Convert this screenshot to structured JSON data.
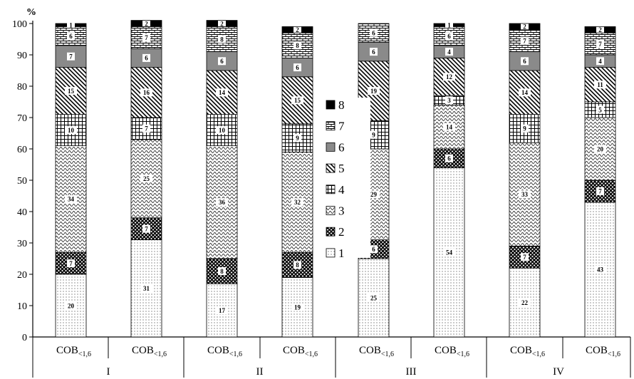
{
  "chart_data": {
    "type": "bar",
    "stacked": true,
    "ylabel": "%",
    "ylim": [
      0,
      100
    ],
    "yticks": [
      0,
      10,
      20,
      30,
      40,
      50,
      60,
      70,
      80,
      90,
      100
    ],
    "grid": false,
    "legend_position": "center",
    "categories": [
      {
        "label": "COB",
        "sub": "<1,6",
        "group": "I"
      },
      {
        "label": "COB",
        "sub": "<1,6",
        "group": "I"
      },
      {
        "label": "COB",
        "sub": "<1,6",
        "group": "II"
      },
      {
        "label": "COB",
        "sub": "<1,6",
        "group": "II"
      },
      {
        "label": "COB",
        "sub": "<1,6",
        "group": "III"
      },
      {
        "label": "COB",
        "sub": "<1,6",
        "group": "III"
      },
      {
        "label": "COB",
        "sub": "<1,6",
        "group": "IV"
      },
      {
        "label": "COB",
        "sub": "<1,6",
        "group": "IV"
      }
    ],
    "groups": [
      "I",
      "II",
      "III",
      "IV"
    ],
    "series": [
      {
        "name": "1",
        "values": [
          20,
          31,
          17,
          19,
          25,
          54,
          22,
          43
        ],
        "labels": [
          "20",
          "31",
          "17",
          "19",
          "25",
          "54",
          "22",
          "43"
        ]
      },
      {
        "name": "2",
        "values": [
          7,
          7,
          8,
          8,
          6,
          6,
          7,
          7
        ],
        "labels": [
          "7",
          "7",
          "8",
          "8",
          "6",
          "6",
          "7",
          "7"
        ]
      },
      {
        "name": "3",
        "values": [
          34,
          25,
          36,
          32,
          29,
          14,
          33,
          20
        ],
        "labels": [
          "34",
          "25",
          "36",
          "32",
          "29",
          "14",
          "33",
          "20"
        ]
      },
      {
        "name": "4",
        "values": [
          10,
          7,
          10,
          9,
          9,
          3,
          9,
          5
        ],
        "labels": [
          "10",
          "7",
          "10",
          "9",
          "9",
          "3",
          "9",
          "5"
        ]
      },
      {
        "name": "5",
        "values": [
          15,
          16,
          14,
          15,
          19,
          12,
          14,
          11
        ],
        "labels": [
          "15",
          "16",
          "14",
          "15",
          "19",
          "12",
          "14",
          "11"
        ]
      },
      {
        "name": "6",
        "values": [
          7,
          6,
          6,
          6,
          6,
          4,
          6,
          4
        ],
        "labels": [
          "7",
          "6",
          "6",
          "6",
          "6",
          "4",
          "6",
          "4"
        ]
      },
      {
        "name": "7",
        "values": [
          6,
          7,
          8,
          8,
          6,
          6,
          7,
          7
        ],
        "labels": [
          "6",
          "7",
          "8",
          "8",
          "6",
          "6",
          "7",
          "7"
        ]
      },
      {
        "name": "8",
        "values": [
          1,
          2,
          2,
          2,
          0,
          1,
          2,
          2
        ],
        "labels": [
          "1",
          "2",
          "2",
          "2",
          "",
          "1",
          "2",
          "2"
        ]
      }
    ],
    "colors": {
      "axis": "#000000",
      "series6_fill": "#8a8a8a",
      "series8_fill": "#000000"
    }
  }
}
